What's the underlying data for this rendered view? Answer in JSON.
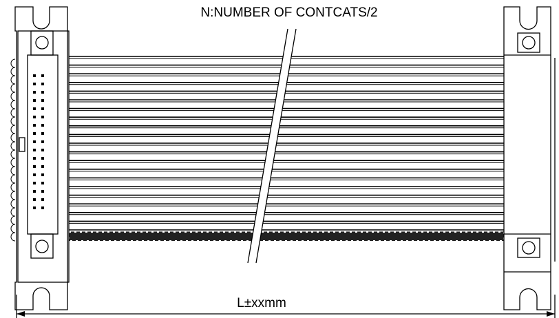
{
  "diagram": {
    "note": "N:NUMBER OF CONTCATS/2",
    "dimension": "L±xxmm"
  }
}
